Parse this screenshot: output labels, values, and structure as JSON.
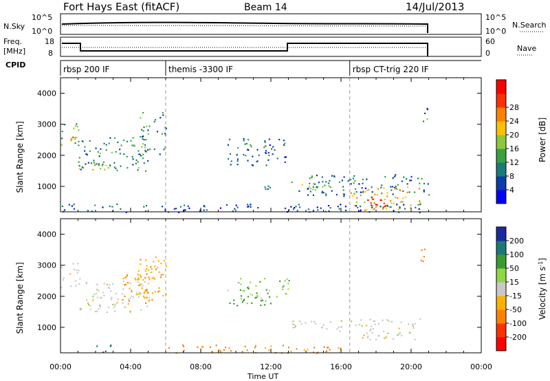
{
  "header": {
    "title": "Fort Hays East (fitACF)",
    "beam": "Beam 14",
    "date": "14/Jul/2013"
  },
  "strips": {
    "nsky_label": "N.Sky",
    "nsky_ticks": [
      "10^5",
      "10^0"
    ],
    "nsearch_label": "N.Search",
    "nsearch_ticks": [
      "10^5",
      "10^0"
    ],
    "freq_label": "Freq.",
    "freq_unit": "[MHz]",
    "freq_ticks": [
      "18",
      "8"
    ],
    "nave_label": "Nave",
    "nave_ticks": [
      "60",
      "0"
    ],
    "cpid_label": "CPID"
  },
  "cpid_segments": [
    {
      "label": "rbsp 200 IF",
      "start_h": 0
    },
    {
      "label": "themis -3300 IF",
      "start_h": 6
    },
    {
      "label": "rbsp CT-trig 220 IF",
      "start_h": 16.5
    }
  ],
  "chart_data": [
    {
      "type": "heatmap",
      "title": "",
      "xlabel": "Time UT",
      "ylabel": "Slant Range [km]",
      "x_ticks": [
        "00:00",
        "04:00",
        "08:00",
        "12:00",
        "16:00",
        "20:00",
        "00:00"
      ],
      "xlim_hours": [
        0,
        24
      ],
      "ylim": [
        180,
        4500
      ],
      "y_ticks": [
        1000,
        2000,
        3000,
        4000
      ],
      "colorbar": {
        "label": "Power [dB]",
        "ticks": [
          4,
          8,
          12,
          16,
          20,
          24,
          28
        ],
        "range": [
          0,
          32
        ],
        "colors": [
          "#0000ff",
          "#0a3caa",
          "#1a7a78",
          "#3aa040",
          "#8ec83a",
          "#ffc000",
          "#ff8000",
          "#ff3000",
          "#ff0000"
        ]
      },
      "blobs": [
        {
          "t0": 0.0,
          "t1": 1.0,
          "r0": 2300,
          "r1": 3100,
          "value": 14
        },
        {
          "t0": 0.0,
          "t1": 1.0,
          "r0": 2450,
          "r1": 2700,
          "value": 24
        },
        {
          "t0": 1.0,
          "t1": 5.0,
          "r0": 1500,
          "r1": 2600,
          "value": 10
        },
        {
          "t0": 1.0,
          "t1": 3.0,
          "r0": 1550,
          "r1": 1750,
          "value": 18
        },
        {
          "t0": 4.5,
          "t1": 6.0,
          "r0": 2000,
          "r1": 3400,
          "value": 10
        },
        {
          "t0": 9.5,
          "t1": 13.0,
          "r0": 1700,
          "r1": 2600,
          "value": 8
        },
        {
          "t0": 11.5,
          "t1": 12.5,
          "r0": 900,
          "r1": 1200,
          "value": 10
        },
        {
          "t0": 13.0,
          "t1": 16.0,
          "r0": 850,
          "r1": 1250,
          "value": 14
        },
        {
          "t0": 14.0,
          "t1": 21.0,
          "r0": 700,
          "r1": 1400,
          "value": 8
        },
        {
          "t0": 16.5,
          "t1": 20.5,
          "r0": 250,
          "r1": 1000,
          "value": 20
        },
        {
          "t0": 17.5,
          "t1": 19.2,
          "r0": 250,
          "r1": 700,
          "value": 28
        },
        {
          "t0": 20.5,
          "t1": 21.0,
          "r0": 3100,
          "r1": 3600,
          "value": 10
        },
        {
          "t0": 0.0,
          "t1": 21.0,
          "r0": 180,
          "r1": 450,
          "value": 6
        }
      ]
    },
    {
      "type": "heatmap",
      "title": "",
      "xlabel": "Time UT",
      "ylabel": "Slant Range [km]",
      "x_ticks": [
        "00:00",
        "04:00",
        "08:00",
        "12:00",
        "16:00",
        "20:00",
        "00:00"
      ],
      "xlim_hours": [
        0,
        24
      ],
      "ylim": [
        180,
        4500
      ],
      "y_ticks": [
        1000,
        2000,
        3000,
        4000
      ],
      "colorbar": {
        "label": "Velocity [m s",
        "label_sup": "-1",
        "label_end": "]",
        "ticks": [
          "200",
          "100",
          "50",
          "15",
          "-15",
          "-50",
          "-100",
          "-200"
        ],
        "colors": [
          "#1a2aa0",
          "#1a7a78",
          "#3a9a30",
          "#8ed840",
          "#c8c8c8",
          "#ffb000",
          "#ff8000",
          "#ff3000",
          "#ff0000"
        ]
      },
      "blobs": [
        {
          "t0": 0.0,
          "t1": 1.0,
          "r0": 2300,
          "r1": 3100,
          "value": 0
        },
        {
          "t0": 1.0,
          "t1": 5.0,
          "r0": 1500,
          "r1": 2600,
          "value": 0
        },
        {
          "t0": 3.5,
          "t1": 5.5,
          "r0": 1800,
          "r1": 2900,
          "value": -50
        },
        {
          "t0": 4.5,
          "t1": 6.0,
          "r0": 2000,
          "r1": 3400,
          "value": -40
        },
        {
          "t0": 9.5,
          "t1": 13.0,
          "r0": 1700,
          "r1": 2600,
          "value": 30
        },
        {
          "t0": 13.0,
          "t1": 16.0,
          "r0": 850,
          "r1": 1250,
          "value": 0
        },
        {
          "t0": 16.5,
          "t1": 20.5,
          "r0": 600,
          "r1": 1300,
          "value": 0
        },
        {
          "t0": 20.5,
          "t1": 21.0,
          "r0": 3100,
          "r1": 3600,
          "value": -60
        },
        {
          "t0": 6.0,
          "t1": 16.0,
          "r0": 180,
          "r1": 450,
          "value": -60
        },
        {
          "t0": 2.0,
          "t1": 3.0,
          "r0": 200,
          "r1": 450,
          "value": 120
        }
      ]
    }
  ]
}
